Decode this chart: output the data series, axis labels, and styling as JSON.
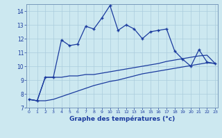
{
  "xlabel": "Graphe des températures (°c)",
  "background_color": "#cce8f0",
  "grid_color": "#aaccdd",
  "line_color": "#1a3a9e",
  "x_values": [
    0,
    1,
    2,
    3,
    4,
    5,
    6,
    7,
    8,
    9,
    10,
    11,
    12,
    13,
    14,
    15,
    16,
    17,
    18,
    19,
    20,
    21,
    22,
    23
  ],
  "main_line": [
    7.6,
    7.5,
    9.2,
    9.2,
    11.9,
    11.5,
    11.6,
    12.9,
    12.7,
    13.5,
    14.4,
    12.6,
    13.0,
    12.7,
    12.0,
    12.5,
    12.6,
    12.7,
    11.1,
    10.5,
    10.0,
    11.2,
    10.3,
    10.2
  ],
  "upper_line": [
    7.6,
    7.5,
    9.2,
    9.2,
    9.2,
    9.3,
    9.3,
    9.4,
    9.4,
    9.5,
    9.6,
    9.7,
    9.8,
    9.9,
    10.0,
    10.1,
    10.2,
    10.35,
    10.45,
    10.55,
    10.65,
    10.75,
    10.8,
    10.2
  ],
  "lower_line": [
    7.6,
    7.5,
    7.5,
    7.6,
    7.8,
    8.0,
    8.2,
    8.4,
    8.6,
    8.75,
    8.9,
    9.0,
    9.15,
    9.3,
    9.45,
    9.55,
    9.65,
    9.75,
    9.85,
    9.95,
    10.05,
    10.15,
    10.25,
    10.2
  ],
  "ylim": [
    7,
    14.5
  ],
  "xlim": [
    -0.3,
    23.3
  ],
  "yticks": [
    7,
    8,
    9,
    10,
    11,
    12,
    13,
    14
  ],
  "xticks": [
    0,
    1,
    2,
    3,
    4,
    5,
    6,
    7,
    8,
    9,
    10,
    11,
    12,
    13,
    14,
    15,
    16,
    17,
    18,
    19,
    20,
    21,
    22,
    23
  ]
}
